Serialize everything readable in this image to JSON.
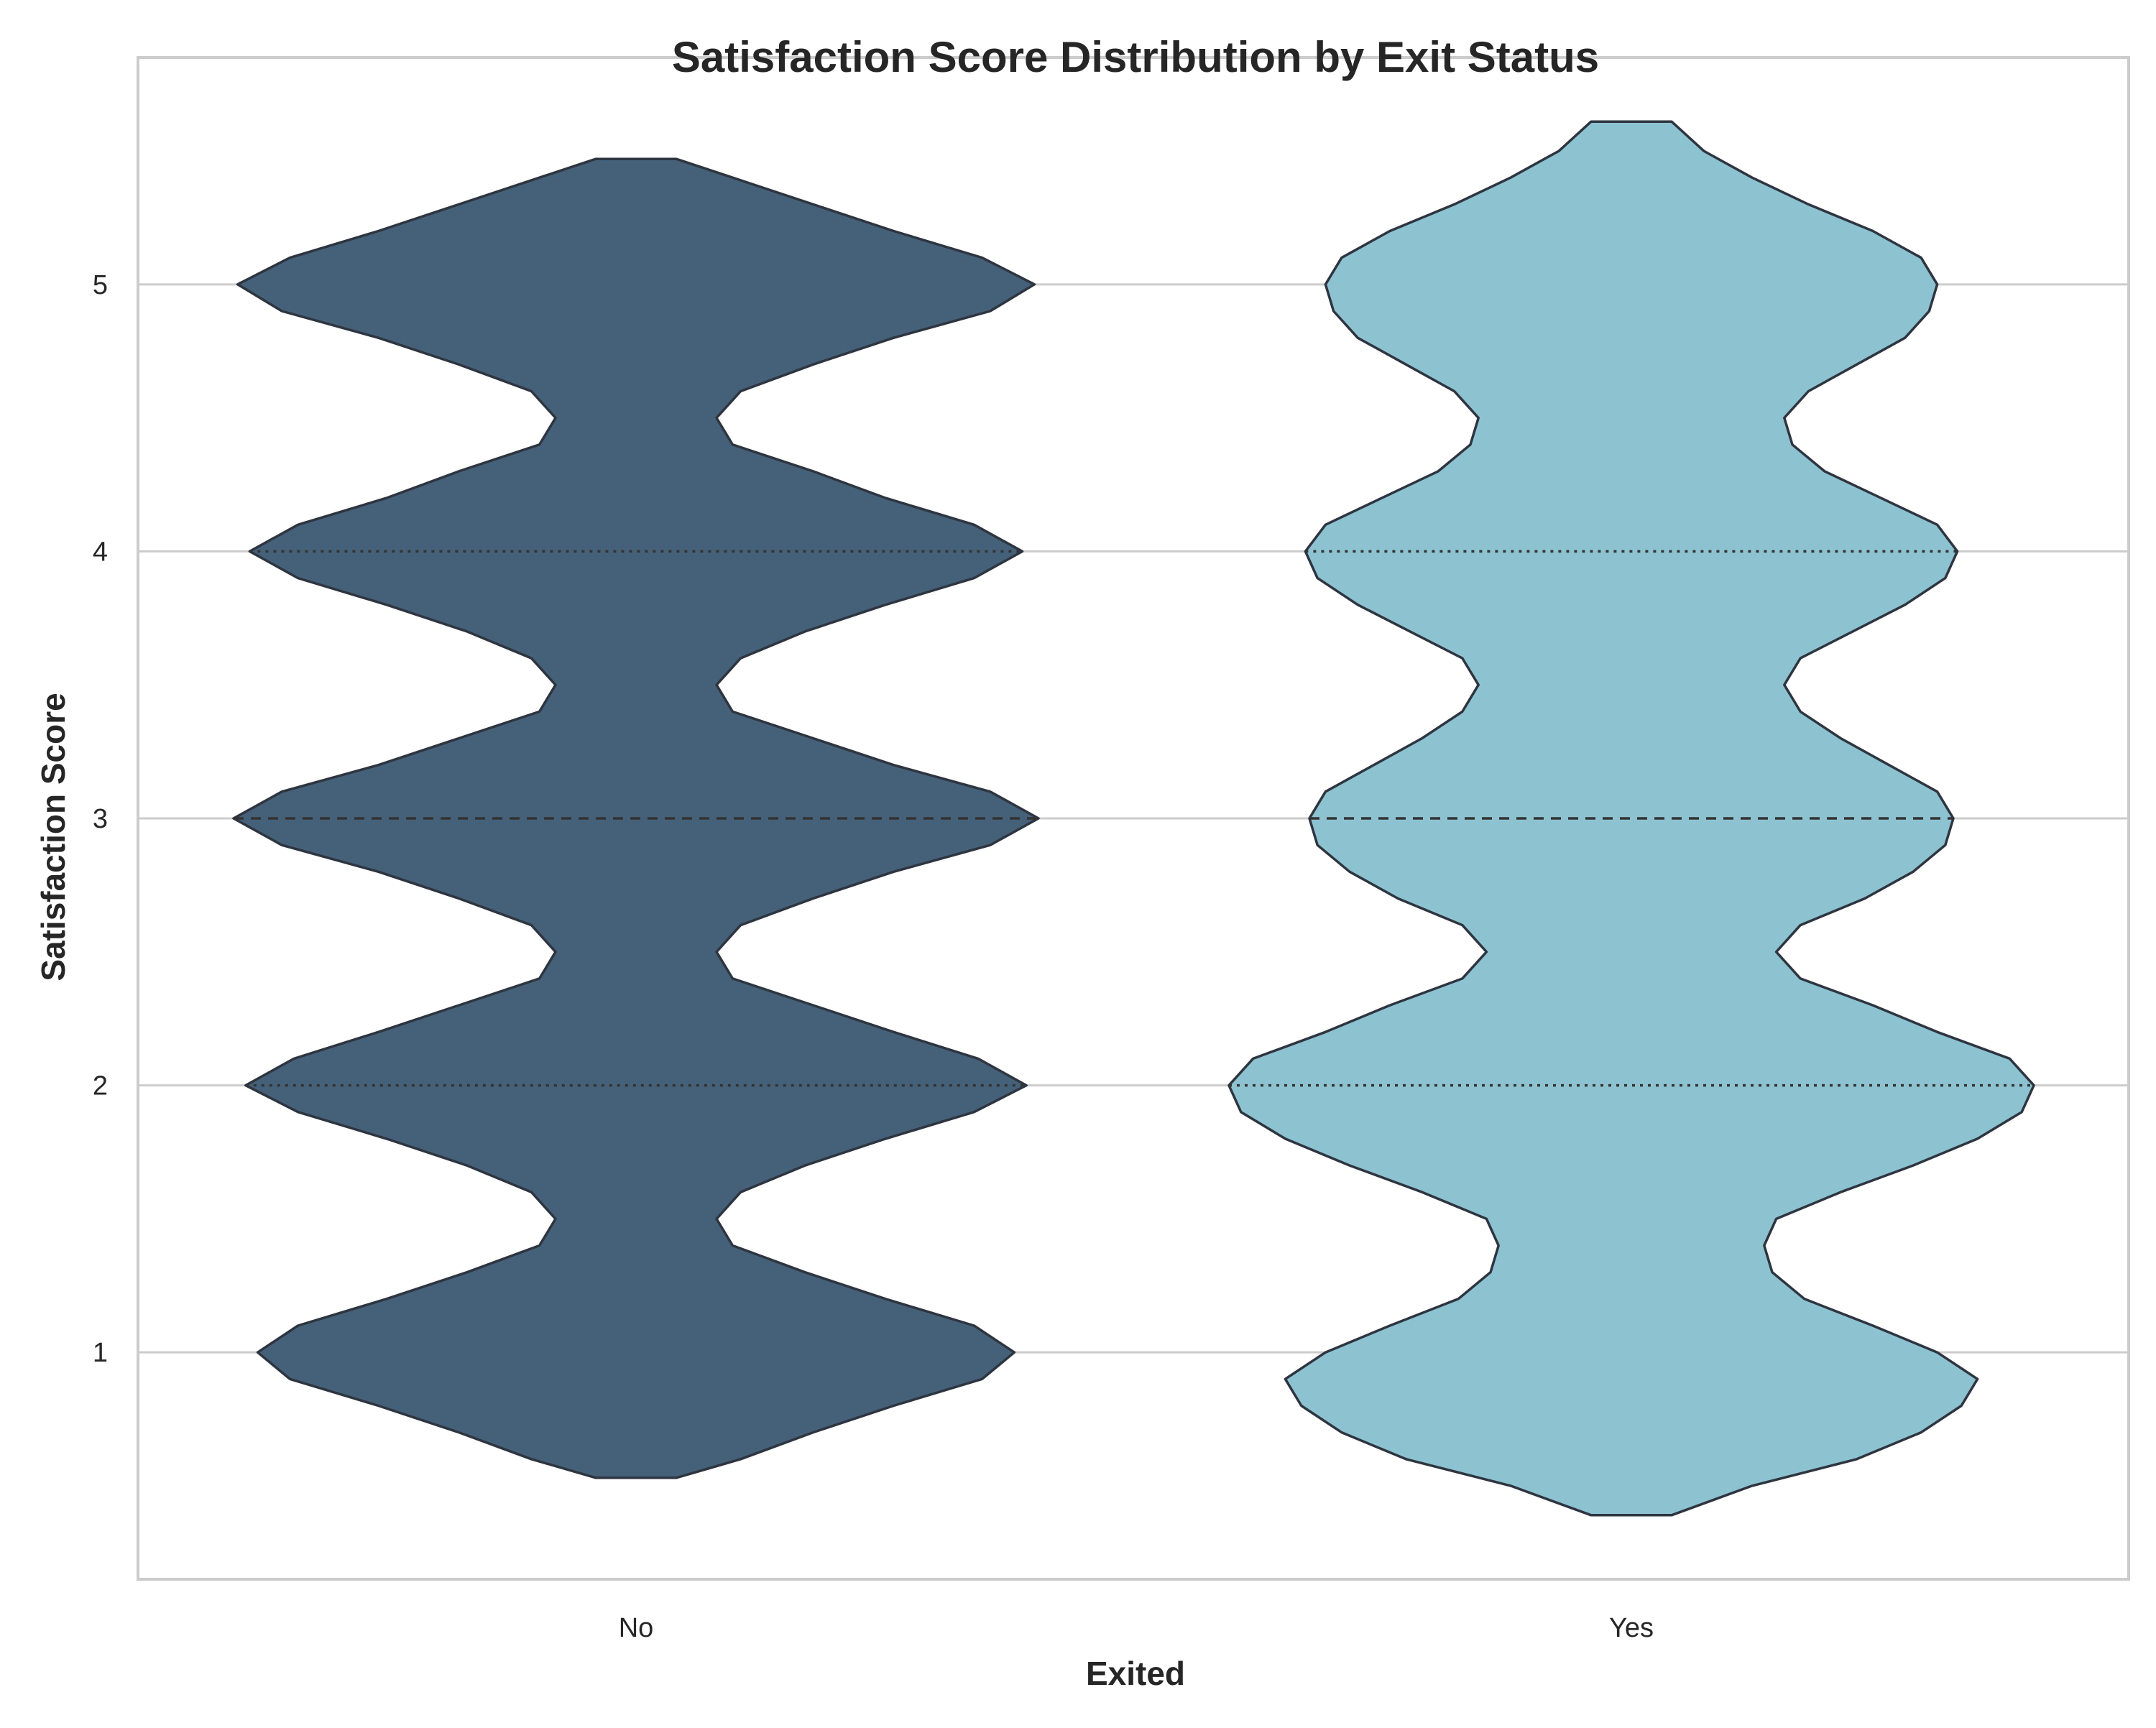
{
  "chart_data": {
    "type": "violin",
    "title": "Satisfaction Score Distribution by Exit Status",
    "xlabel": "Exited",
    "ylabel": "Satisfaction Score",
    "categories": [
      "No",
      "Yes"
    ],
    "ylim": [
      0.15,
      5.85
    ],
    "yticks": [
      1,
      2,
      3,
      4,
      5
    ],
    "grid": "horizontal",
    "inner": "quartiles",
    "series": [
      {
        "category": "No",
        "color": "#456179",
        "min": 0.53,
        "max": 5.47,
        "quartiles": [
          2,
          3,
          4
        ],
        "density": [
          [
            0.53,
            0.1
          ],
          [
            0.6,
            0.26
          ],
          [
            0.7,
            0.44
          ],
          [
            0.8,
            0.64
          ],
          [
            0.9,
            0.86
          ],
          [
            1.0,
            0.94
          ],
          [
            1.1,
            0.84
          ],
          [
            1.2,
            0.62
          ],
          [
            1.3,
            0.42
          ],
          [
            1.4,
            0.24
          ],
          [
            1.5,
            0.2
          ],
          [
            1.6,
            0.26
          ],
          [
            1.7,
            0.42
          ],
          [
            1.8,
            0.62
          ],
          [
            1.9,
            0.84
          ],
          [
            2.0,
            0.97
          ],
          [
            2.1,
            0.85
          ],
          [
            2.2,
            0.64
          ],
          [
            2.3,
            0.44
          ],
          [
            2.4,
            0.24
          ],
          [
            2.5,
            0.2
          ],
          [
            2.6,
            0.26
          ],
          [
            2.7,
            0.44
          ],
          [
            2.8,
            0.64
          ],
          [
            2.9,
            0.88
          ],
          [
            3.0,
            1.0
          ],
          [
            3.1,
            0.88
          ],
          [
            3.2,
            0.64
          ],
          [
            3.3,
            0.44
          ],
          [
            3.4,
            0.24
          ],
          [
            3.5,
            0.2
          ],
          [
            3.6,
            0.26
          ],
          [
            3.7,
            0.42
          ],
          [
            3.8,
            0.62
          ],
          [
            3.9,
            0.84
          ],
          [
            4.0,
            0.96
          ],
          [
            4.1,
            0.84
          ],
          [
            4.2,
            0.62
          ],
          [
            4.3,
            0.44
          ],
          [
            4.4,
            0.24
          ],
          [
            4.5,
            0.2
          ],
          [
            4.6,
            0.26
          ],
          [
            4.7,
            0.44
          ],
          [
            4.8,
            0.64
          ],
          [
            4.9,
            0.88
          ],
          [
            5.0,
            0.99
          ],
          [
            5.1,
            0.86
          ],
          [
            5.2,
            0.64
          ],
          [
            5.3,
            0.44
          ],
          [
            5.4,
            0.24
          ],
          [
            5.47,
            0.1
          ]
        ]
      },
      {
        "category": "Yes",
        "color": "#8dc3d1",
        "min": 0.39,
        "max": 5.61,
        "quartiles": [
          2,
          3,
          4
        ],
        "density": [
          [
            0.39,
            0.1
          ],
          [
            0.5,
            0.3
          ],
          [
            0.6,
            0.56
          ],
          [
            0.7,
            0.72
          ],
          [
            0.8,
            0.82
          ],
          [
            0.9,
            0.86
          ],
          [
            1.0,
            0.76
          ],
          [
            1.1,
            0.6
          ],
          [
            1.2,
            0.43
          ],
          [
            1.3,
            0.35
          ],
          [
            1.4,
            0.33
          ],
          [
            1.5,
            0.36
          ],
          [
            1.6,
            0.52
          ],
          [
            1.7,
            0.7
          ],
          [
            1.8,
            0.86
          ],
          [
            1.9,
            0.97
          ],
          [
            2.0,
            1.0
          ],
          [
            2.1,
            0.94
          ],
          [
            2.2,
            0.76
          ],
          [
            2.3,
            0.6
          ],
          [
            2.4,
            0.42
          ],
          [
            2.5,
            0.36
          ],
          [
            2.6,
            0.42
          ],
          [
            2.7,
            0.58
          ],
          [
            2.8,
            0.7
          ],
          [
            2.9,
            0.78
          ],
          [
            3.0,
            0.8
          ],
          [
            3.1,
            0.76
          ],
          [
            3.2,
            0.64
          ],
          [
            3.3,
            0.52
          ],
          [
            3.4,
            0.42
          ],
          [
            3.5,
            0.38
          ],
          [
            3.6,
            0.42
          ],
          [
            3.7,
            0.55
          ],
          [
            3.8,
            0.68
          ],
          [
            3.9,
            0.78
          ],
          [
            4.0,
            0.81
          ],
          [
            4.1,
            0.76
          ],
          [
            4.2,
            0.62
          ],
          [
            4.3,
            0.48
          ],
          [
            4.4,
            0.4
          ],
          [
            4.5,
            0.38
          ],
          [
            4.6,
            0.44
          ],
          [
            4.7,
            0.56
          ],
          [
            4.8,
            0.68
          ],
          [
            4.9,
            0.74
          ],
          [
            5.0,
            0.76
          ],
          [
            5.1,
            0.72
          ],
          [
            5.2,
            0.6
          ],
          [
            5.3,
            0.44
          ],
          [
            5.4,
            0.3
          ],
          [
            5.5,
            0.18
          ],
          [
            5.61,
            0.1
          ]
        ]
      }
    ]
  }
}
